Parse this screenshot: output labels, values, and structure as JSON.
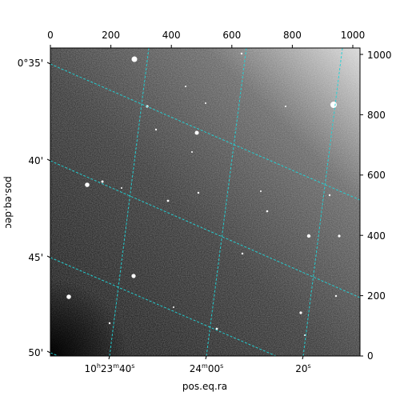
{
  "figure": {
    "xlabel": "pos.eq.ra",
    "ylabel": "pos.eq.dec",
    "grid_color": "#22d3d6",
    "top_ticks": [
      "0",
      "200",
      "400",
      "600",
      "800",
      "1000"
    ],
    "right_ticks": [
      "0",
      "200",
      "400",
      "600",
      "800",
      "1000"
    ],
    "left_ticks": [
      "0°35'",
      "40'",
      "45'",
      "50'"
    ],
    "bottom_ticks": [
      {
        "main": "10",
        "h": "h",
        "mid": "23",
        "m": "m",
        "val": "40",
        "s": "s"
      },
      {
        "main": "24",
        "m": "m",
        "val": "00",
        "s": "s"
      },
      {
        "main": "20",
        "s": "s"
      }
    ],
    "image_background": "astronomical grayscale field with stars"
  }
}
